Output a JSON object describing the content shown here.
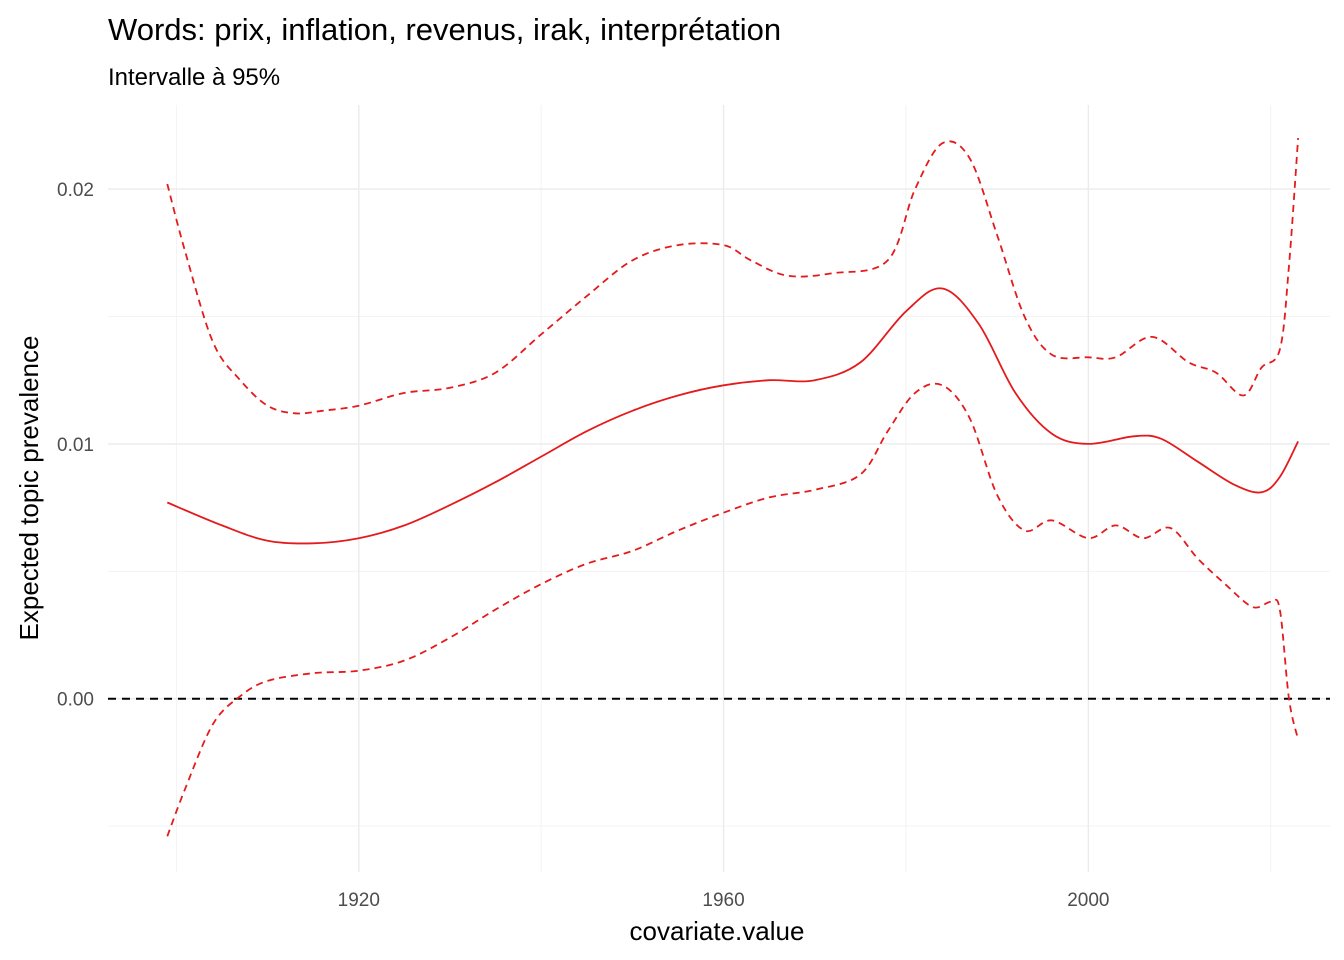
{
  "chart_data": {
    "type": "line",
    "title": "Words: prix, inflation, revenus, irak, interprétation",
    "subtitle": "Intervalle à 95%",
    "xlabel": "covariate.value",
    "ylabel": "Expected topic prevalence",
    "xlim": [
      1892.5,
      2026.5
    ],
    "ylim": [
      -0.0068,
      0.0233
    ],
    "x_ticks": [
      1920,
      1960,
      2000
    ],
    "x_tick_labels": [
      "1920",
      "1960",
      "2000"
    ],
    "y_ticks": [
      0.0,
      0.01,
      0.02
    ],
    "y_tick_labels": [
      "0.00",
      "0.01",
      "0.02"
    ],
    "grid": true,
    "reference_line": {
      "y": 0.0,
      "style": "dashed",
      "color": "#000000"
    },
    "colors": {
      "series": "#e41a1c"
    },
    "series": [
      {
        "role": "estimate",
        "style": "solid",
        "x": [
          1899,
          1905,
          1910,
          1915,
          1920,
          1925,
          1930,
          1935,
          1940,
          1945,
          1950,
          1955,
          1960,
          1965,
          1970,
          1975,
          1980,
          1984,
          1988,
          1992,
          1996,
          2000,
          2005,
          2008,
          2012,
          2016,
          2019,
          2021,
          2023
        ],
        "y": [
          0.0077,
          0.0068,
          0.0062,
          0.0061,
          0.0063,
          0.0068,
          0.0076,
          0.0085,
          0.0095,
          0.0105,
          0.0113,
          0.0119,
          0.0123,
          0.0125,
          0.0125,
          0.0132,
          0.0152,
          0.0161,
          0.0147,
          0.012,
          0.0104,
          0.01,
          0.0103,
          0.0102,
          0.0093,
          0.0084,
          0.0081,
          0.0087,
          0.0101
        ]
      },
      {
        "role": "upper-95",
        "style": "dashed",
        "x": [
          1899,
          1901,
          1904,
          1907,
          1910,
          1913,
          1916,
          1920,
          1925,
          1930,
          1935,
          1940,
          1945,
          1950,
          1955,
          1960,
          1963,
          1967,
          1972,
          1978,
          1981,
          1984,
          1987,
          1990,
          1993,
          1996,
          2000,
          2003,
          2007,
          2011,
          2014,
          2017,
          2019,
          2021,
          2022,
          2023
        ],
        "y": [
          0.0202,
          0.0175,
          0.014,
          0.0125,
          0.0115,
          0.0112,
          0.0113,
          0.0115,
          0.012,
          0.0122,
          0.0128,
          0.0143,
          0.0158,
          0.0172,
          0.0178,
          0.0178,
          0.0172,
          0.0166,
          0.0167,
          0.0172,
          0.02,
          0.0218,
          0.0212,
          0.0182,
          0.015,
          0.0135,
          0.0134,
          0.0134,
          0.0142,
          0.0132,
          0.0128,
          0.0119,
          0.013,
          0.0137,
          0.017,
          0.022
        ]
      },
      {
        "role": "lower-95",
        "style": "dashed",
        "x": [
          1899,
          1901,
          1904,
          1907,
          1910,
          1915,
          1920,
          1925,
          1930,
          1935,
          1940,
          1945,
          1950,
          1955,
          1960,
          1965,
          1970,
          1975,
          1978,
          1981,
          1984,
          1987,
          1990,
          1993,
          1996,
          2000,
          2003,
          2006,
          2009,
          2012,
          2015,
          2018,
          2020,
          2021,
          2022,
          2023
        ],
        "y": [
          -0.0054,
          -0.0035,
          -0.001,
          0.0001,
          0.0007,
          0.001,
          0.0011,
          0.0015,
          0.0024,
          0.0035,
          0.0045,
          0.0053,
          0.0058,
          0.0066,
          0.0073,
          0.0079,
          0.0082,
          0.0088,
          0.0105,
          0.012,
          0.0123,
          0.011,
          0.008,
          0.0066,
          0.007,
          0.0063,
          0.0068,
          0.0063,
          0.0067,
          0.0055,
          0.0045,
          0.0036,
          0.0038,
          0.0035,
          0.0,
          -0.0016
        ]
      }
    ]
  }
}
